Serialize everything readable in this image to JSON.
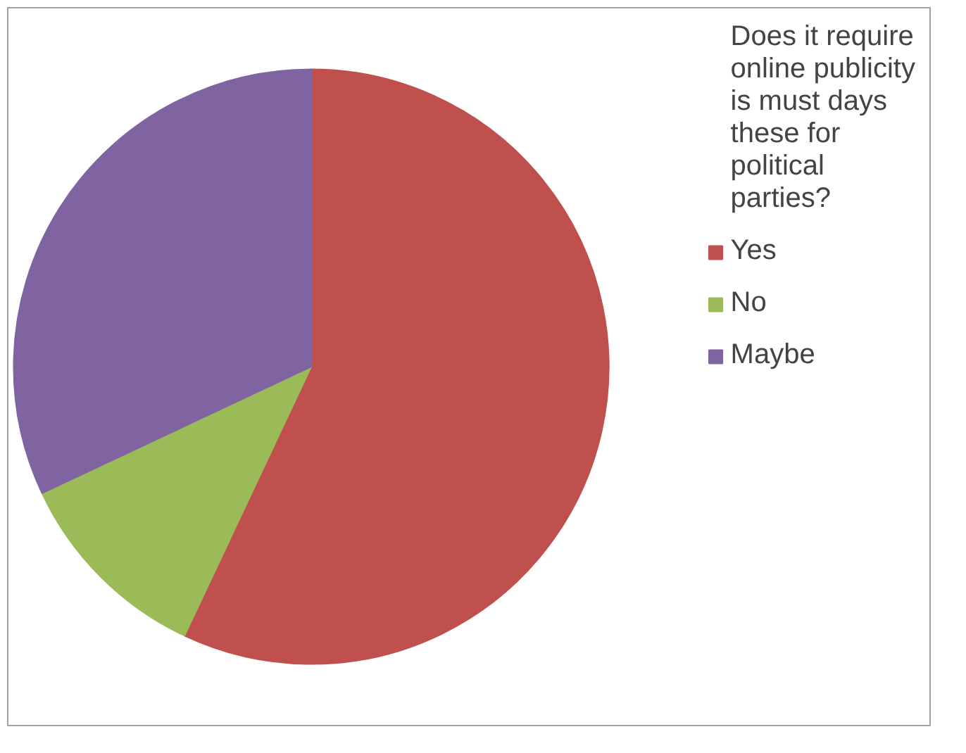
{
  "chart_data": {
    "type": "pie",
    "categories": [
      "Does it require online publicity is must days these for political parties?",
      "Yes",
      "No",
      "Maybe"
    ],
    "values": [
      0,
      57,
      11,
      32
    ],
    "colors": [
      "#4f81bd",
      "#c0504d",
      "#9bbb59",
      "#8064a2"
    ],
    "legend": "right"
  }
}
